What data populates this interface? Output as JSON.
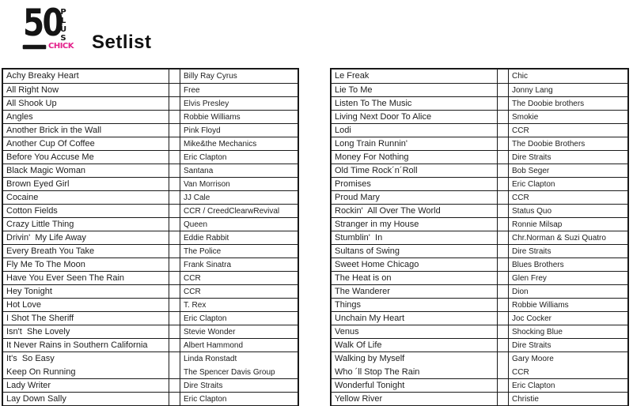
{
  "logo": {
    "number": "50",
    "plus": "PLUS",
    "chick": "CHICK",
    "chick_color": "#e3208b"
  },
  "title": "Setlist",
  "tables": [
    {
      "side": "left",
      "rows": [
        {
          "song": [
            "Achy Breaky Heart"
          ],
          "artist": [
            "Billy Ray Cyrus"
          ]
        },
        {
          "song": [
            "All Right Now"
          ],
          "artist": [
            "Free"
          ]
        },
        {
          "song": [
            "All Shook Up"
          ],
          "artist": [
            "Elvis Presley"
          ]
        },
        {
          "song": [
            "Angles"
          ],
          "artist": [
            "Robbie Williams"
          ]
        },
        {
          "song": [
            "Another Brick in the Wall"
          ],
          "artist": [
            "Pink Floyd"
          ]
        },
        {
          "song": [
            "Another Cup Of Coffee"
          ],
          "artist": [
            "Mike&the Mechanics"
          ]
        },
        {
          "song": [
            "Before You Accuse Me"
          ],
          "artist": [
            "Eric Clapton"
          ]
        },
        {
          "song": [
            "Black Magic Woman"
          ],
          "artist": [
            "Santana"
          ]
        },
        {
          "song": [
            "Brown Eyed Girl"
          ],
          "artist": [
            "Van Morrison"
          ]
        },
        {
          "song": [
            "Cocaine"
          ],
          "artist": [
            "JJ Cale"
          ]
        },
        {
          "song": [
            "Cotton Fields"
          ],
          "artist": [
            "CCR / CreedClearwRevival"
          ]
        },
        {
          "song": [
            "Crazy Little Thing"
          ],
          "artist": [
            "Queen"
          ]
        },
        {
          "song": [
            "Drivin'  My Life Away"
          ],
          "artist": [
            "Eddie Rabbit"
          ]
        },
        {
          "song": [
            "Every Breath You Take"
          ],
          "artist": [
            "The Police"
          ]
        },
        {
          "song": [
            "Fly Me To The Moon"
          ],
          "artist": [
            "Frank Sinatra"
          ]
        },
        {
          "song": [
            "Have You Ever Seen The Rain"
          ],
          "artist": [
            "CCR"
          ]
        },
        {
          "song": [
            "Hey Tonight"
          ],
          "artist": [
            "CCR"
          ]
        },
        {
          "song": [
            "Hot Love"
          ],
          "artist": [
            "T. Rex"
          ]
        },
        {
          "song": [
            "I Shot The Sheriff"
          ],
          "artist": [
            "Eric Clapton"
          ]
        },
        {
          "song": [
            "Isn't  She Lovely"
          ],
          "artist": [
            "Stevie Wonder"
          ]
        },
        {
          "song": [
            "It Never Rains in Southern California"
          ],
          "artist": [
            "Albert Hammond"
          ]
        },
        {
          "song": [
            "It's  So Easy",
            "Keep On Running"
          ],
          "artist": [
            "Linda Ronstadt",
            "The Spencer Davis Group"
          ]
        },
        {
          "song": [
            "Lady Writer"
          ],
          "artist": [
            "Dire Straits"
          ]
        },
        {
          "song": [
            "Lay Down Sally"
          ],
          "artist": [
            "Eric Clapton"
          ]
        }
      ]
    },
    {
      "side": "right",
      "rows": [
        {
          "song": [
            "Le Freak"
          ],
          "artist": [
            "Chic"
          ]
        },
        {
          "song": [
            "Lie To Me"
          ],
          "artist": [
            "Jonny Lang"
          ]
        },
        {
          "song": [
            "Listen To The Music"
          ],
          "artist": [
            "The Doobie brothers"
          ]
        },
        {
          "song": [
            "Living Next Door To Alice"
          ],
          "artist": [
            "Smokie"
          ]
        },
        {
          "song": [
            "Lodi"
          ],
          "artist": [
            "CCR"
          ]
        },
        {
          "song": [
            "Long Train Runnin'"
          ],
          "artist": [
            "The Doobie Brothers"
          ]
        },
        {
          "song": [
            "Money For Nothing"
          ],
          "artist": [
            "Dire Straits"
          ]
        },
        {
          "song": [
            "Old Time Rock´n´Roll"
          ],
          "artist": [
            "Bob Seger"
          ]
        },
        {
          "song": [
            "Promises"
          ],
          "artist": [
            "Eric Clapton"
          ]
        },
        {
          "song": [
            "Proud Mary"
          ],
          "artist": [
            "CCR"
          ]
        },
        {
          "song": [
            "Rockin'  All Over The World"
          ],
          "artist": [
            "Status Quo"
          ]
        },
        {
          "song": [
            "Stranger in my House"
          ],
          "artist": [
            "Ronnie Milsap"
          ]
        },
        {
          "song": [
            "Stumblin'  In"
          ],
          "artist": [
            "Chr.Norman & Suzi Quatro"
          ]
        },
        {
          "song": [
            "Sultans of Swing"
          ],
          "artist": [
            "Dire Straits"
          ]
        },
        {
          "song": [
            "Sweet Home Chicago"
          ],
          "artist": [
            "Blues Brothers"
          ]
        },
        {
          "song": [
            "The Heat is on"
          ],
          "artist": [
            "Glen Frey"
          ]
        },
        {
          "song": [
            "The Wanderer"
          ],
          "artist": [
            "Dion"
          ]
        },
        {
          "song": [
            "Things"
          ],
          "artist": [
            "Robbie Williams"
          ]
        },
        {
          "song": [
            "Unchain My Heart"
          ],
          "artist": [
            "Joc Cocker"
          ]
        },
        {
          "song": [
            "Venus"
          ],
          "artist": [
            "Shocking Blue"
          ]
        },
        {
          "song": [
            "Walk Of Life"
          ],
          "artist": [
            "Dire Straits"
          ]
        },
        {
          "song": [
            "Walking by Myself",
            "Who ´ll Stop The Rain"
          ],
          "artist": [
            "Gary Moore",
            "CCR"
          ]
        },
        {
          "song": [
            "Wonderful Tonight"
          ],
          "artist": [
            "Eric Clapton"
          ]
        },
        {
          "song": [
            "Yellow River"
          ],
          "artist": [
            "Christie"
          ]
        }
      ]
    }
  ]
}
